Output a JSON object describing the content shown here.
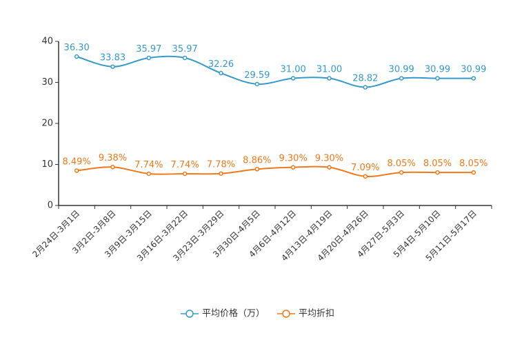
{
  "chart_data": {
    "type": "line",
    "categories": [
      "2月24日-3月1日",
      "3月2日-3月8日",
      "3月9日-3月15日",
      "3月16日-3月22日",
      "3月23日-3月29日",
      "3月30日-4月5日",
      "4月6日-4月12日",
      "4月13日-4月19日",
      "4月20日-4月26日",
      "4月27日-5月3日",
      "5月4日-5月10日",
      "5月11日-5月17日"
    ],
    "ylim": [
      0,
      40
    ],
    "yticks": [
      0,
      10,
      20,
      30,
      40
    ],
    "series": [
      {
        "name": "平均价格（万）",
        "color": "#3399cc",
        "values": [
          36.3,
          33.83,
          35.97,
          35.97,
          32.26,
          29.59,
          31.0,
          31.0,
          28.82,
          30.99,
          30.99,
          30.99
        ],
        "labels": [
          "36.30",
          "33.83",
          "35.97",
          "35.97",
          "32.26",
          "29.59",
          "31.00",
          "31.00",
          "28.82",
          "30.99",
          "30.99",
          "30.99"
        ]
      },
      {
        "name": "平均折扣",
        "color": "#f07818",
        "values": [
          8.49,
          9.38,
          7.74,
          7.74,
          7.78,
          8.86,
          9.3,
          9.3,
          7.09,
          8.05,
          8.05,
          8.05
        ],
        "labels": [
          "8.49%",
          "9.38%",
          "7.74%",
          "7.74%",
          "7.78%",
          "8.86%",
          "9.30%",
          "9.30%",
          "7.09%",
          "8.05%",
          "8.05%",
          "8.05%"
        ]
      }
    ],
    "legend_position": "bottom-center",
    "grid": false
  }
}
